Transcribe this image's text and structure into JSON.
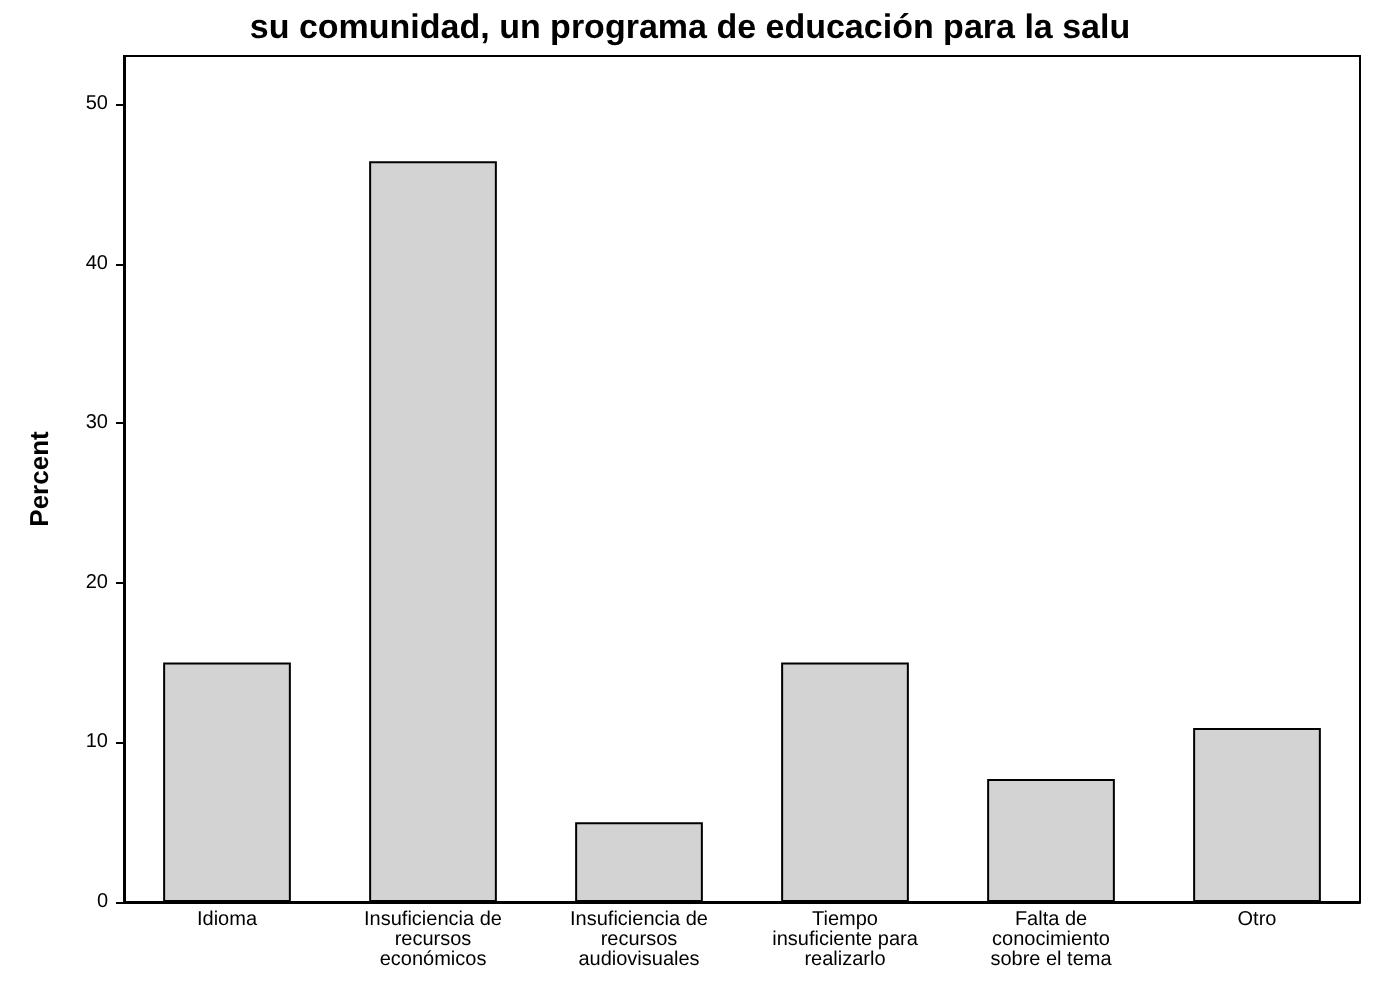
{
  "chart_data": {
    "type": "bar",
    "title": "su comunidad, un programa de educación para la salu",
    "categories": [
      "Idioma",
      "Insuficiencia de\nrecursos\neconómicos",
      "Insuficiencia de\nrecursos\naudiovisuales",
      "Tiempo\ninsuficiente para\nrealizarlo",
      "Falta de\nconocimiento\nsobre el tema",
      "Otro"
    ],
    "values": [
      15.0,
      46.4,
      5.0,
      15.0,
      7.7,
      10.9
    ],
    "color": "#d3d3d3",
    "ylabel": "Percent",
    "ylim": [
      0,
      53
    ],
    "yticks": [
      0,
      10,
      20,
      30,
      40,
      50
    ],
    "grid": false
  }
}
